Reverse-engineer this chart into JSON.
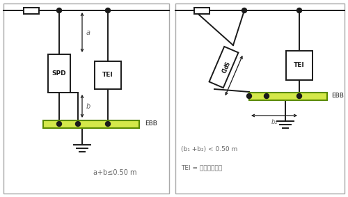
{
  "bg_color": "#ffffff",
  "border_color": "#aaaaaa",
  "line_color": "#1a1a1a",
  "ebb_fill": "#d4e84a",
  "ebb_border": "#5a8a00",
  "text_color": "#666666",
  "label_a_b": "a+b≤0.50 m",
  "label_b1b2": "(b₁ +b₂) < 0.50 m",
  "label_tei": "TEI = 终端设备接口"
}
